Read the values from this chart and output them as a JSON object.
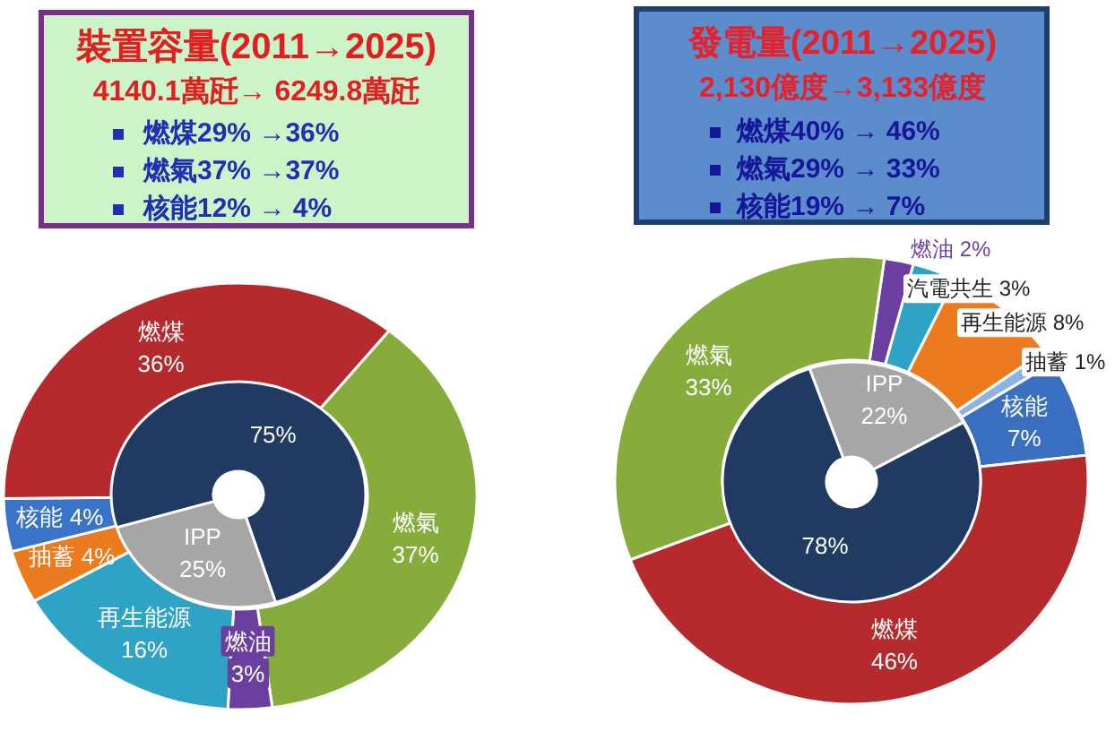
{
  "chart_data": [
    {
      "type": "other",
      "title": "裝置容量(2011→2025)",
      "subtitle": "4140.1萬瓩→ 6249.8萬瓩",
      "annotations": [
        "燃煤29% →36%",
        "燃氣37% →37%",
        "核能12% → 4%"
      ]
    },
    {
      "type": "donut",
      "categories": [
        "燃氣",
        "燃油",
        "再生能源",
        "抽蓄",
        "核能",
        "燃煤"
      ],
      "values": [
        37,
        3,
        16,
        4,
        4,
        36
      ],
      "colors": [
        "#86ad3c",
        "#6b3fa0",
        "#2fa3c6",
        "#ec7a1e",
        "#3a74c8",
        "#b52a2c"
      ],
      "value_labels": [
        "37%",
        "3%",
        "16%",
        "4%",
        "4%",
        "36%"
      ]
    },
    {
      "type": "donut",
      "categories": [
        null,
        "IPP"
      ],
      "values": [
        75,
        25
      ],
      "colors": [
        "#213a62",
        "#a6a6a6"
      ],
      "value_labels": [
        "75%",
        "25%"
      ]
    },
    {
      "type": "other",
      "title": "發電量(2011→2025)",
      "subtitle": "2,130億度→3,133億度",
      "annotations": [
        "燃煤40% → 46%",
        "燃氣29% → 33%",
        "核能19% → 7%"
      ]
    },
    {
      "type": "donut",
      "categories": [
        "燃油",
        "汽電共生",
        "再生能源",
        "抽蓄",
        "核能",
        "燃煤",
        "燃氣"
      ],
      "values": [
        2,
        3,
        8,
        1,
        7,
        46,
        33
      ],
      "colors": [
        "#6b3fa0",
        "#2fa3c6",
        "#ec7a1e",
        "#8db3e2",
        "#3a6fc0",
        "#b52a2c",
        "#86ad3c"
      ],
      "value_labels": [
        "2%",
        "3%",
        "8%",
        "1%",
        "7%",
        "46%",
        "33%"
      ]
    },
    {
      "type": "donut",
      "categories": [
        "IPP",
        null
      ],
      "values": [
        22,
        78
      ],
      "colors": [
        "#a6a6a6",
        "#213a62"
      ],
      "value_labels": [
        "22%",
        "78%"
      ]
    }
  ]
}
